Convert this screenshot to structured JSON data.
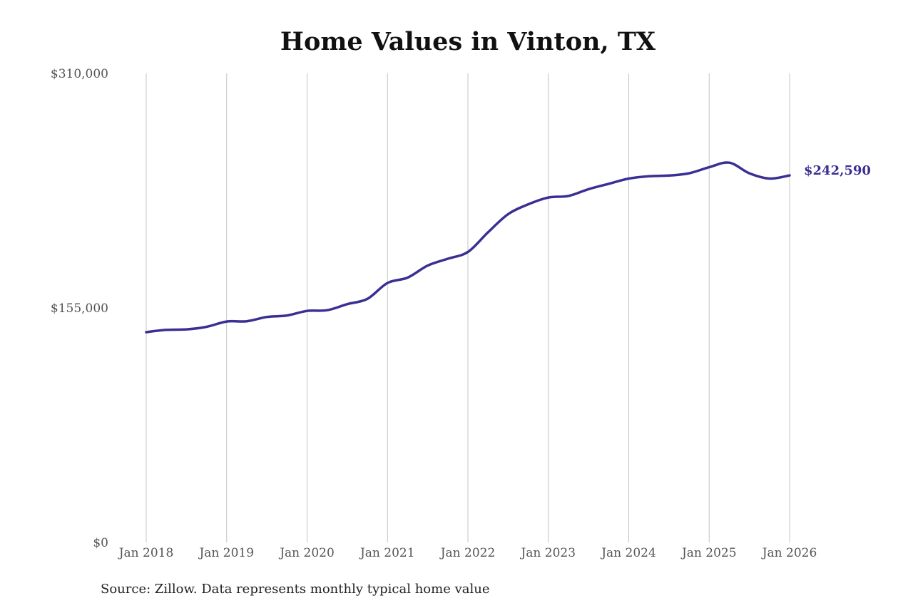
{
  "chart_data": {
    "type": "line",
    "title": "Home Values in Vinton, TX",
    "xlabel": "",
    "ylabel": "",
    "source": "Source: Zillow. Data represents monthly typical home value",
    "y_ticks": [
      {
        "value": 0,
        "label": "$0"
      },
      {
        "value": 155000,
        "label": "$155,000"
      },
      {
        "value": 310000,
        "label": "$310,000"
      }
    ],
    "ylim": [
      0,
      310000
    ],
    "x_ticks": [
      "Jan 2018",
      "Jan 2019",
      "Jan 2020",
      "Jan 2021",
      "Jan 2022",
      "Jan 2023",
      "Jan 2024",
      "Jan 2025",
      "Jan 2026"
    ],
    "xlim": [
      "Jan 2018",
      "Jan 2026"
    ],
    "grid": "vertical",
    "line_color": "#3a2f93",
    "end_label": "$242,590",
    "series": [
      {
        "name": "",
        "x": [
          "Jan 2018",
          "Apr 2018",
          "Jul 2018",
          "Oct 2018",
          "Jan 2019",
          "Apr 2019",
          "Jul 2019",
          "Oct 2019",
          "Jan 2020",
          "Apr 2020",
          "Jul 2020",
          "Oct 2020",
          "Jan 2021",
          "Apr 2021",
          "Jul 2021",
          "Oct 2021",
          "Jan 2022",
          "Apr 2022",
          "Jul 2022",
          "Oct 2022",
          "Jan 2023",
          "Apr 2023",
          "Jul 2023",
          "Oct 2023",
          "Jan 2024",
          "Apr 2024",
          "Jul 2024",
          "Oct 2024",
          "Jan 2025",
          "Apr 2025",
          "Jul 2025",
          "Oct 2025",
          "Jan 2026"
        ],
        "values": [
          139000,
          140500,
          140800,
          142500,
          146000,
          146200,
          149000,
          150000,
          153000,
          153500,
          157500,
          161000,
          171500,
          175000,
          183000,
          187500,
          192000,
          205000,
          217000,
          223500,
          228000,
          229000,
          233500,
          237000,
          240500,
          242000,
          242500,
          244000,
          248000,
          251000,
          244000,
          240500,
          242590
        ]
      }
    ]
  }
}
